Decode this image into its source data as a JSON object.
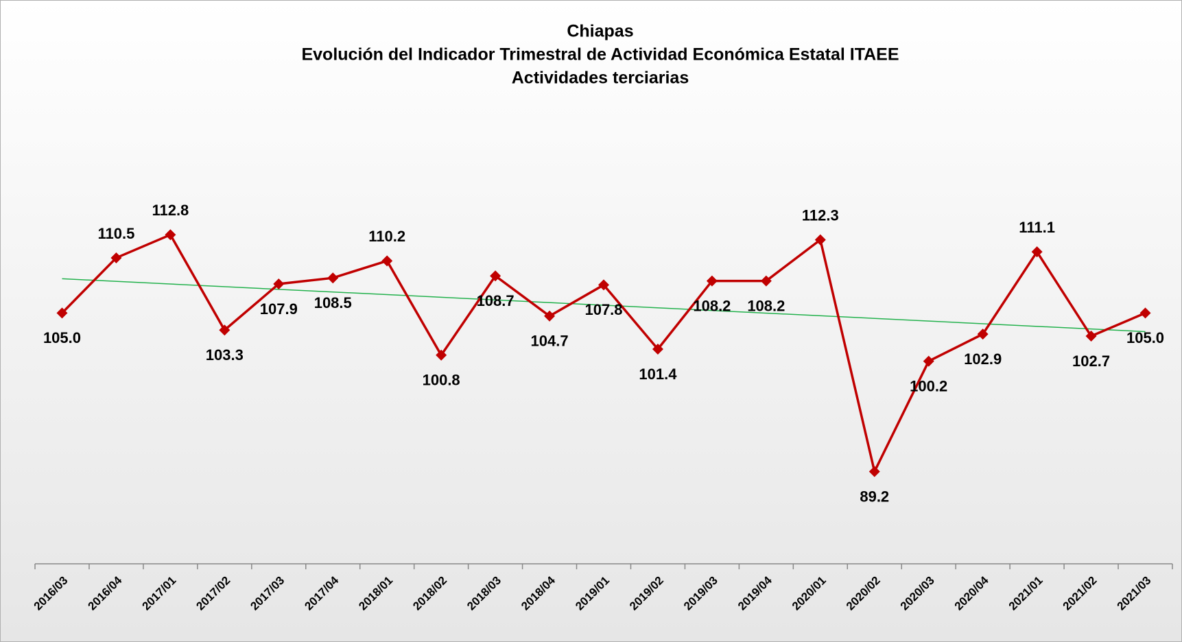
{
  "chart_data": {
    "type": "line",
    "title": "Chiapas",
    "subtitle": [
      "Evolución del Indicador Trimestral de Actividad Económica Estatal ITAEE",
      "Actividades terciarias"
    ],
    "categories": [
      "2016/03",
      "2016/04",
      "2017/01",
      "2017/02",
      "2017/03",
      "2017/04",
      "2018/01",
      "2018/02",
      "2018/03",
      "2018/04",
      "2019/01",
      "2019/02",
      "2019/03",
      "2019/04",
      "2020/01",
      "2020/02",
      "2020/03",
      "2020/04",
      "2021/01",
      "2021/02",
      "2021/03"
    ],
    "series": [
      {
        "color": "#c00000",
        "values": [
          105.0,
          110.5,
          112.8,
          103.3,
          107.9,
          108.5,
          110.2,
          100.8,
          108.7,
          104.7,
          107.8,
          101.4,
          108.2,
          108.2,
          112.3,
          89.2,
          100.2,
          102.9,
          111.1,
          102.7,
          105.0
        ],
        "value_labels": [
          "105.0",
          "110.5",
          "112.8",
          "103.3",
          "107.9",
          "108.5",
          "110.2",
          "100.8",
          "108.7",
          "104.7",
          "107.8",
          "101.4",
          "108.2",
          "108.2",
          "112.3",
          "89.2",
          "100.2",
          "102.9",
          "111.1",
          "102.7",
          "105.0"
        ]
      }
    ],
    "ylim": [
      80,
      120
    ],
    "trendline": {
      "color": "#22b14c"
    }
  }
}
